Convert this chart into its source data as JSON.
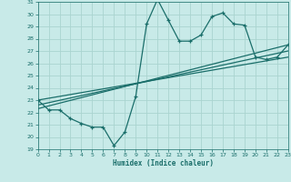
{
  "xlabel": "Humidex (Indice chaleur)",
  "bg_color": "#c8eae8",
  "grid_color": "#aad4d0",
  "line_color": "#1a6e6a",
  "x_min": 0,
  "x_max": 23,
  "y_min": 19,
  "y_max": 31,
  "line1_x": [
    0,
    1,
    2,
    3,
    4,
    5,
    6,
    7,
    8,
    9,
    10,
    11,
    12,
    13,
    14,
    15,
    16,
    17,
    18,
    19,
    20,
    21,
    22,
    23
  ],
  "line1_y": [
    23.0,
    22.2,
    22.2,
    21.5,
    21.1,
    20.8,
    20.8,
    19.3,
    20.4,
    23.3,
    29.2,
    31.2,
    29.5,
    27.8,
    27.8,
    28.3,
    29.8,
    30.1,
    29.2,
    29.1,
    26.5,
    26.3,
    26.5,
    27.5
  ],
  "line2_x": [
    0,
    23
  ],
  "line2_y": [
    22.3,
    27.5
  ],
  "line3_x": [
    0,
    23
  ],
  "line3_y": [
    23.0,
    26.5
  ],
  "line4_x": [
    0,
    23
  ],
  "line4_y": [
    22.6,
    27.0
  ]
}
